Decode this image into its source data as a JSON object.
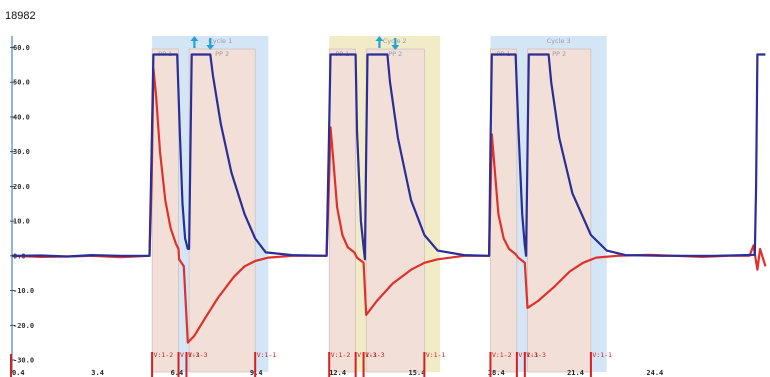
{
  "figure_id": "18982",
  "colors": {
    "cycle_blue": "#d4e6f5",
    "cycle_yellow": "#f1ebc8",
    "phase_fill": "#f1dfd8",
    "series_red": "#e0302a",
    "series_blue": "#2a2e96",
    "marker": "#1fa4d8",
    "event_red": "#d42020"
  },
  "chart_data": {
    "type": "line",
    "title": "",
    "xlabel": "",
    "ylabel": "",
    "xlim": [
      0.4,
      29.0
    ],
    "ylim": [
      -30,
      60
    ],
    "grid": false,
    "y_ticks": [
      {
        "v": 60,
        "label": "60.0"
      },
      {
        "v": 50,
        "label": "50.0"
      },
      {
        "v": 40,
        "label": "40.0"
      },
      {
        "v": 30,
        "label": "30.0"
      },
      {
        "v": 20,
        "label": "20.0"
      },
      {
        "v": 10,
        "label": "10.0"
      },
      {
        "v": 0,
        "label": "0.0"
      },
      {
        "v": -10,
        "label": "-10.0"
      },
      {
        "v": -20,
        "label": "-20.0"
      },
      {
        "v": -30,
        "label": "-30.0"
      }
    ],
    "x_ticks": [
      {
        "v": 0.4,
        "label": "0.4"
      },
      {
        "v": 3.4,
        "label": "3.4"
      },
      {
        "v": 6.4,
        "label": "6.4"
      },
      {
        "v": 9.4,
        "label": "9.4"
      },
      {
        "v": 12.4,
        "label": "12.4"
      },
      {
        "v": 15.4,
        "label": "15.4"
      },
      {
        "v": 18.4,
        "label": "18.4"
      },
      {
        "v": 21.4,
        "label": "21.4"
      },
      {
        "v": 24.4,
        "label": "24.4"
      }
    ],
    "cycles": [
      {
        "start": 5.7,
        "end": 10.1,
        "color": "blue",
        "label": "Cycle 1"
      },
      {
        "start": 12.4,
        "end": 16.6,
        "color": "yellow",
        "label": "Cycle 2"
      },
      {
        "start": 18.5,
        "end": 22.9,
        "color": "blue",
        "label": "Cycle 3"
      }
    ],
    "phases": [
      {
        "start": 5.7,
        "end": 6.7,
        "label": "PP 1"
      },
      {
        "start": 7.1,
        "end": 9.6,
        "label": "PP 2"
      },
      {
        "start": 12.4,
        "end": 13.4,
        "label": "PP 1"
      },
      {
        "start": 13.8,
        "end": 16.0,
        "label": "PP 2"
      },
      {
        "start": 18.5,
        "end": 19.5,
        "label": "PP 1"
      },
      {
        "start": 19.9,
        "end": 22.3,
        "label": "PP 2"
      }
    ],
    "markers": [
      {
        "x": 7.3,
        "dir": "up"
      },
      {
        "x": 7.9,
        "dir": "down"
      },
      {
        "x": 14.3,
        "dir": "up"
      },
      {
        "x": 14.9,
        "dir": "down"
      }
    ],
    "events": [
      {
        "x": 5.7,
        "label": "V:1-2"
      },
      {
        "x": 6.7,
        "label": "V:1-3"
      },
      {
        "x": 7.0,
        "label": "V:1-3"
      },
      {
        "x": 9.6,
        "label": "V:1-1"
      },
      {
        "x": 12.4,
        "label": "V:1-2"
      },
      {
        "x": 13.4,
        "label": "V:1-3"
      },
      {
        "x": 13.7,
        "label": "V:1-3"
      },
      {
        "x": 16.0,
        "label": "V:1-1"
      },
      {
        "x": 18.5,
        "label": "V:1-2"
      },
      {
        "x": 19.5,
        "label": "V:1-3"
      },
      {
        "x": 19.8,
        "label": "V:1-3"
      },
      {
        "x": 22.3,
        "label": "V:1-1"
      }
    ],
    "series": [
      {
        "color": "red",
        "x": [
          0.4,
          1.5,
          2.5,
          3.4,
          4.5,
          5.6,
          5.68,
          5.75,
          5.85,
          6.0,
          6.2,
          6.4,
          6.6,
          6.7,
          6.72,
          6.9,
          7.05,
          7.3,
          7.7,
          8.2,
          8.8,
          9.2,
          9.6,
          10.1,
          11.0,
          12.3,
          12.38,
          12.45,
          12.55,
          12.7,
          12.9,
          13.1,
          13.35,
          13.45,
          13.7,
          13.8,
          14.2,
          14.8,
          15.5,
          16.0,
          16.5,
          17.5,
          18.45,
          18.5,
          18.55,
          18.65,
          18.8,
          19.0,
          19.2,
          19.45,
          19.55,
          19.8,
          19.9,
          20.3,
          20.9,
          21.5,
          22.0,
          22.5,
          23.3,
          24.5,
          25.5,
          26.5,
          27.5,
          28.3,
          28.45,
          28.6,
          28.7,
          28.9
        ],
        "values": [
          0,
          -0.3,
          -0.2,
          0,
          -0.4,
          0,
          20,
          54,
          46,
          30,
          16,
          8,
          3.5,
          2,
          -1,
          -3,
          -25,
          -23,
          -18,
          -12,
          -6,
          -3,
          -1.5,
          -0.5,
          0,
          0,
          18,
          37,
          28,
          14,
          6,
          2.5,
          1,
          -0.5,
          -2,
          -17,
          -13,
          -8,
          -4,
          -2,
          -1,
          0,
          0,
          17,
          35,
          26,
          12,
          5,
          2,
          0.5,
          -0.5,
          -2,
          -15,
          -13,
          -9,
          -4.5,
          -2,
          -0.5,
          0,
          0.3,
          0,
          -0.3,
          0,
          0,
          3,
          -4,
          2,
          -3
        ]
      },
      {
        "color": "blue",
        "x": [
          0.4,
          1.5,
          2.5,
          3.4,
          4.5,
          5.6,
          5.68,
          5.75,
          6.65,
          6.75,
          6.85,
          6.95,
          7.05,
          7.1,
          7.15,
          7.2,
          7.9,
          8.0,
          8.3,
          8.7,
          9.2,
          9.6,
          10.0,
          11.0,
          12.3,
          12.38,
          12.45,
          13.4,
          13.45,
          13.6,
          13.7,
          13.75,
          13.8,
          13.85,
          14.6,
          14.7,
          15.0,
          15.5,
          16.0,
          16.5,
          17.5,
          18.45,
          18.5,
          18.55,
          19.45,
          19.55,
          19.7,
          19.8,
          19.85,
          19.9,
          19.95,
          20.7,
          20.8,
          21.1,
          21.6,
          22.3,
          22.9,
          23.6,
          25.0,
          27.0,
          28.5,
          28.55,
          28.6,
          28.9
        ],
        "values": [
          0,
          0.1,
          -0.2,
          0.2,
          0,
          0,
          30,
          58,
          58,
          35,
          15,
          5,
          2,
          2,
          30,
          58,
          58,
          52,
          38,
          24,
          12,
          5,
          1,
          0.2,
          0,
          30,
          58,
          58,
          36,
          10,
          2.5,
          -1,
          30,
          58,
          58,
          50,
          34,
          16,
          6,
          1.5,
          0.2,
          0,
          30,
          58,
          58,
          38,
          12,
          3,
          0,
          30,
          58,
          58,
          50,
          34,
          18,
          6,
          1.5,
          0.2,
          0,
          0,
          0.3,
          20,
          58,
          58
        ]
      }
    ]
  }
}
